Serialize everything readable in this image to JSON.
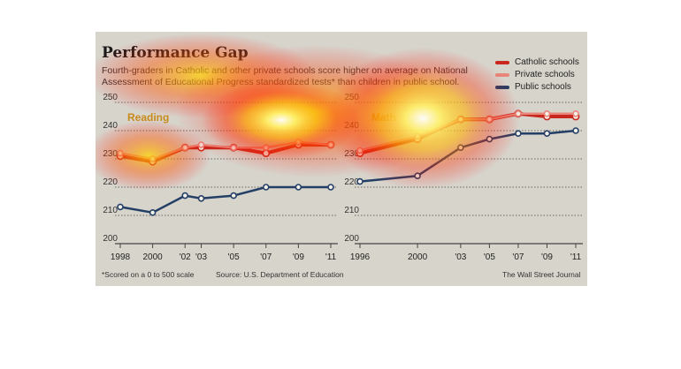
{
  "chart_data": [
    {
      "type": "line",
      "panel_label": "Reading",
      "x": [
        1998,
        2000,
        2002,
        2003,
        2005,
        2007,
        2009,
        2011
      ],
      "tick_labels": [
        "1998",
        "2000",
        "'02",
        "'03",
        "'05",
        "'07",
        "'09",
        "'11"
      ],
      "ylim": [
        200,
        250
      ],
      "yticks": [
        200,
        210,
        220,
        230,
        240,
        250
      ],
      "grid": true,
      "series": [
        {
          "name": "Catholic schools",
          "values": [
            231,
            229,
            234,
            234,
            234,
            232,
            235,
            235
          ]
        },
        {
          "name": "Private schools",
          "values": [
            232,
            230,
            234,
            235,
            234,
            234,
            236,
            235
          ]
        },
        {
          "name": "Public schools",
          "values": [
            213,
            211,
            217,
            216,
            217,
            220,
            220,
            220
          ]
        }
      ]
    },
    {
      "type": "line",
      "panel_label": "Math",
      "x": [
        1996,
        2000,
        2003,
        2005,
        2007,
        2009,
        2011
      ],
      "tick_labels": [
        "1996",
        "2000",
        "'03",
        "'05",
        "'07",
        "'09",
        "'11"
      ],
      "ylim": [
        200,
        250
      ],
      "yticks": [
        200,
        210,
        220,
        230,
        240,
        250
      ],
      "grid": true,
      "series": [
        {
          "name": "Catholic schools",
          "values": [
            232,
            237,
            244,
            244,
            246,
            245,
            245
          ]
        },
        {
          "name": "Private schools",
          "values": [
            233,
            238,
            244,
            244,
            246,
            246,
            246
          ]
        },
        {
          "name": "Public schools",
          "values": [
            222,
            224,
            234,
            237,
            239,
            239,
            240
          ]
        }
      ]
    }
  ],
  "header": {
    "title": "Performance Gap",
    "subtitle": "Fourth-graders in Catholic and other private schools score higher on average on National Assessment of Educational Progress standardized tests* than children in public school."
  },
  "legend": {
    "placement": "top-right",
    "items": [
      {
        "label": "Catholic schools",
        "color": "#c8281e"
      },
      {
        "label": "Private schools",
        "color": "#e8867a"
      },
      {
        "label": "Public schools",
        "color": "#243f66"
      }
    ]
  },
  "footer": {
    "note": "*Scored on a 0 to 500 scale",
    "source": "Source: U.S. Department of Education",
    "credit": "The Wall Street Journal"
  },
  "colors": {
    "background": "#d7d4cc",
    "catholic": "#c8281e",
    "private": "#e8867a",
    "public": "#243f66",
    "panel_label": "#c98a1c"
  }
}
